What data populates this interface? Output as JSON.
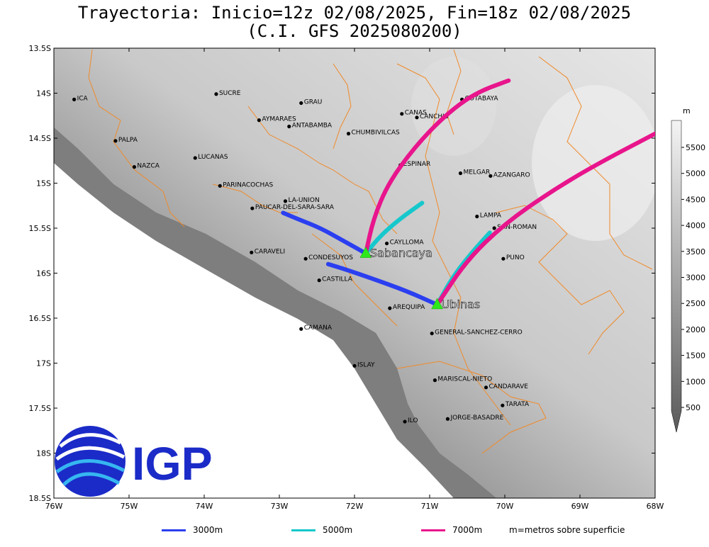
{
  "title_line1": "Trayectoria: Inicio=12z 02/08/2025, Fin=18z 02/08/2025",
  "title_line2": "(C.I. GFS 2025080200)",
  "x_ticks": [
    "76W",
    "75W",
    "74W",
    "73W",
    "72W",
    "71W",
    "70W",
    "69W",
    "68W"
  ],
  "y_ticks": [
    "13.5S",
    "14S",
    "14.5S",
    "15S",
    "15.5S",
    "16S",
    "16.5S",
    "17S",
    "17.5S",
    "18S",
    "18.5S"
  ],
  "colorbar_unit": "m",
  "colorbar_ticks": [
    "5500",
    "5000",
    "4500",
    "4000",
    "3500",
    "3000",
    "2500",
    "2000",
    "1500",
    "1000",
    "500"
  ],
  "legend": [
    {
      "label": "3000m",
      "color": "#2b3ff0"
    },
    {
      "label": "5000m",
      "color": "#16c8cc"
    },
    {
      "label": "7000m",
      "color": "#e8158c"
    }
  ],
  "legend_note": "m=metros sobre superficie",
  "logo_text": "IGP",
  "volcanoes": [
    {
      "name": "Sabancaya",
      "lon": -71.85,
      "lat": -15.78
    },
    {
      "name": "Ubinas",
      "lon": -70.9,
      "lat": -16.35
    }
  ],
  "places": [
    {
      "name": "ICA",
      "lon": -75.73,
      "lat": -14.07
    },
    {
      "name": "SUCRE",
      "lon": -73.84,
      "lat": -14.01
    },
    {
      "name": "GRAU",
      "lon": -72.71,
      "lat": -14.11
    },
    {
      "name": "AYMARAES",
      "lon": -73.27,
      "lat": -14.3
    },
    {
      "name": "ANTABAMBA",
      "lon": -72.87,
      "lat": -14.37
    },
    {
      "name": "CANAS",
      "lon": -71.37,
      "lat": -14.23
    },
    {
      "name": "CANCHIS",
      "lon": -71.17,
      "lat": -14.27
    },
    {
      "name": "COTABAYA",
      "lon": -70.57,
      "lat": -14.07
    },
    {
      "name": "CHUMBIVILCAS",
      "lon": -72.08,
      "lat": -14.45
    },
    {
      "name": "PALPA",
      "lon": -75.18,
      "lat": -14.53
    },
    {
      "name": "LUCANAS",
      "lon": -74.12,
      "lat": -14.72
    },
    {
      "name": "NAZCA",
      "lon": -74.93,
      "lat": -14.82
    },
    {
      "name": "ESPINAR",
      "lon": -71.39,
      "lat": -14.8
    },
    {
      "name": "MELGAR",
      "lon": -70.59,
      "lat": -14.89
    },
    {
      "name": "AZANGARO",
      "lon": -70.19,
      "lat": -14.92
    },
    {
      "name": "PARINACOCHAS",
      "lon": -73.79,
      "lat": -15.03
    },
    {
      "name": "LA-UNION",
      "lon": -72.92,
      "lat": -15.2
    },
    {
      "name": "PAUCAR-DEL-SARA-SARA",
      "lon": -73.36,
      "lat": -15.28
    },
    {
      "name": "LAMPA",
      "lon": -70.37,
      "lat": -15.37
    },
    {
      "name": "SAN-ROMAN",
      "lon": -70.14,
      "lat": -15.5
    },
    {
      "name": "CAYLLOMA",
      "lon": -71.57,
      "lat": -15.67
    },
    {
      "name": "CARAVELI",
      "lon": -73.37,
      "lat": -15.77
    },
    {
      "name": "CONDESUYOS",
      "lon": -72.65,
      "lat": -15.84
    },
    {
      "name": "PUNO",
      "lon": -70.02,
      "lat": -15.84
    },
    {
      "name": "CASTILLA",
      "lon": -72.47,
      "lat": -16.08
    },
    {
      "name": "AREQUIPA",
      "lon": -71.53,
      "lat": -16.39
    },
    {
      "name": "GENERAL-SANCHEZ-CERRO",
      "lon": -70.97,
      "lat": -16.67
    },
    {
      "name": "CAMANA",
      "lon": -72.71,
      "lat": -16.62
    },
    {
      "name": "ISLAY",
      "lon": -72.0,
      "lat": -17.03
    },
    {
      "name": "MARISCAL-NIETO",
      "lon": -70.93,
      "lat": -17.19
    },
    {
      "name": "CANDARAVE",
      "lon": -70.25,
      "lat": -17.27
    },
    {
      "name": "TARATA",
      "lon": -70.03,
      "lat": -17.47
    },
    {
      "name": "JORGE-BASADRE",
      "lon": -70.76,
      "lat": -17.62
    },
    {
      "name": "ILO",
      "lon": -71.33,
      "lat": -17.65
    }
  ],
  "trajectories": [
    {
      "level": "3000m",
      "color": "#2b3ff0",
      "points": [
        [
          -71.85,
          -15.78
        ],
        [
          -72.15,
          -15.64
        ],
        [
          -72.45,
          -15.5
        ],
        [
          -72.75,
          -15.4
        ],
        [
          -72.95,
          -15.33
        ]
      ]
    },
    {
      "level": "5000m",
      "color": "#16c8cc",
      "points": [
        [
          -71.85,
          -15.78
        ],
        [
          -71.65,
          -15.58
        ],
        [
          -71.4,
          -15.4
        ],
        [
          -71.1,
          -15.22
        ]
      ]
    },
    {
      "level": "7000m",
      "color": "#e8158c",
      "points": [
        [
          -71.85,
          -15.78
        ],
        [
          -71.75,
          -15.4
        ],
        [
          -71.55,
          -15.0
        ],
        [
          -71.2,
          -14.6
        ],
        [
          -70.8,
          -14.25
        ],
        [
          -70.4,
          -14.0
        ],
        [
          -69.95,
          -13.86
        ]
      ]
    },
    {
      "level": "3000m",
      "color": "#2b3ff0",
      "points": [
        [
          -70.9,
          -16.35
        ],
        [
          -71.3,
          -16.2
        ],
        [
          -71.8,
          -16.05
        ],
        [
          -72.15,
          -15.95
        ],
        [
          -72.35,
          -15.9
        ]
      ]
    },
    {
      "level": "5000m",
      "color": "#16c8cc",
      "points": [
        [
          -70.9,
          -16.35
        ],
        [
          -70.7,
          -16.05
        ],
        [
          -70.45,
          -15.78
        ],
        [
          -70.2,
          -15.55
        ]
      ]
    },
    {
      "level": "7000m",
      "color": "#e8158c",
      "points": [
        [
          -70.9,
          -16.35
        ],
        [
          -70.5,
          -15.85
        ],
        [
          -70.0,
          -15.45
        ],
        [
          -69.4,
          -15.1
        ],
        [
          -68.8,
          -14.8
        ],
        [
          -68.0,
          -14.45
        ]
      ]
    }
  ]
}
